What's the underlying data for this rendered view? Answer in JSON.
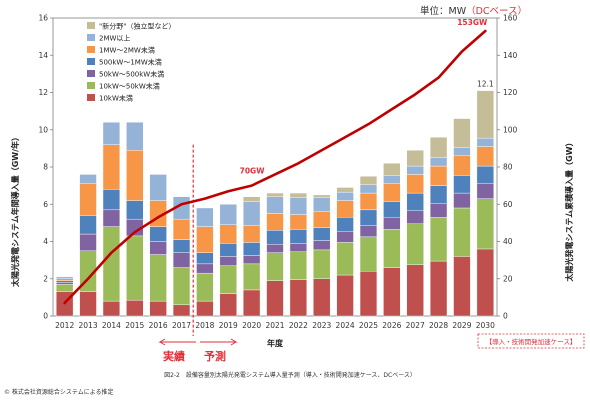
{
  "chart_data": {
    "type": "bar",
    "stacked": true,
    "title": "",
    "unit_label": "単位：MW",
    "unit_label_accent": "（DCベース）",
    "xlabel": "年度",
    "ylabel_left": "太陽光発電システム年間導入量（GW/年）",
    "ylabel_right": "太陽光発電システム累積導入量（GW）",
    "ylim_left": [
      0,
      16
    ],
    "ylim_right": [
      0,
      160
    ],
    "yticks_left": [
      "0",
      "2",
      "4",
      "6",
      "8",
      "10",
      "12",
      "14",
      "16"
    ],
    "yticks_right": [
      "0",
      "20",
      "40",
      "60",
      "80",
      "100",
      "120",
      "140",
      "160"
    ],
    "categories": [
      "2012",
      "2013",
      "2014",
      "2015",
      "2016",
      "2017",
      "2018",
      "2019",
      "2020",
      "2021",
      "2022",
      "2023",
      "2024",
      "2025",
      "2026",
      "2027",
      "2028",
      "2029",
      "2030"
    ],
    "series": [
      {
        "name": "10kW未満",
        "color": "#c0504d",
        "values": [
          1.3,
          1.3,
          0.8,
          0.85,
          0.8,
          0.6,
          0.8,
          1.2,
          1.4,
          1.9,
          1.95,
          2.0,
          2.2,
          2.4,
          2.6,
          2.75,
          2.95,
          3.2,
          3.6
        ]
      },
      {
        "name": "10kW～50kW未満",
        "color": "#9bbb59",
        "values": [
          0.4,
          2.2,
          4.0,
          3.45,
          2.5,
          2.0,
          1.5,
          1.5,
          1.4,
          1.5,
          1.5,
          1.55,
          1.75,
          1.85,
          2.05,
          2.2,
          2.35,
          2.6,
          2.7
        ]
      },
      {
        "name": "50kW～500kW未満",
        "color": "#8064a2",
        "values": [
          0.1,
          0.9,
          0.9,
          0.9,
          0.7,
          0.8,
          0.5,
          0.5,
          0.45,
          0.45,
          0.45,
          0.5,
          0.6,
          0.6,
          0.65,
          0.7,
          0.75,
          0.8,
          0.8
        ]
      },
      {
        "name": "500kW～1MW未満",
        "color": "#4f81bd",
        "values": [
          0.1,
          1.0,
          1.1,
          1.0,
          0.8,
          0.7,
          0.6,
          0.7,
          0.7,
          0.75,
          0.75,
          0.7,
          0.75,
          0.85,
          0.85,
          0.95,
          0.95,
          0.95,
          0.95
        ]
      },
      {
        "name": "1MW～2MW未満",
        "color": "#f79646",
        "values": [
          0.1,
          1.7,
          2.4,
          2.7,
          1.4,
          1.1,
          1.4,
          1.0,
          0.9,
          0.9,
          0.8,
          0.85,
          0.9,
          0.9,
          0.95,
          1.0,
          1.05,
          1.05,
          1.05
        ]
      },
      {
        "name": "2MW以上",
        "color": "#95b3d7",
        "values": [
          0.1,
          0.5,
          1.2,
          1.5,
          1.4,
          1.2,
          1.0,
          1.1,
          1.3,
          0.9,
          0.9,
          0.75,
          0.45,
          0.45,
          0.45,
          0.45,
          0.45,
          0.45,
          0.45
        ]
      },
      {
        "name": "\"新分野\"（独立型など）",
        "color": "#c4bd97",
        "values": [
          0.0,
          0.0,
          0.0,
          0.0,
          0.0,
          0.0,
          0.0,
          0.0,
          0.25,
          0.2,
          0.25,
          0.15,
          0.25,
          0.45,
          0.65,
          0.85,
          1.1,
          1.55,
          2.55
        ]
      }
    ],
    "cumulative": {
      "name": "累積導入量",
      "color": "#c00000",
      "axis": "right",
      "values": [
        7,
        20,
        34,
        45,
        53,
        60,
        63,
        67,
        70,
        76,
        82,
        89,
        96,
        103,
        111,
        119,
        128,
        142,
        153
      ]
    },
    "data_labels": {
      "bar_2030": "12.1",
      "cum_2020": "70GW",
      "cum_2030": "153GW"
    },
    "annotation_actual": "実績",
    "annotation_forecast": "予測",
    "split_between": [
      "2017",
      "2018"
    ],
    "scenario_label": "【導入・技術開発加速ケース】",
    "grid": false,
    "legend_position": "top-left"
  },
  "caption": "図2-2　設備容量別太陽光発電システム導入量予測（導入・技術開発加速ケース、DCベース）",
  "copyright": "© 株式会社資源総合システムによる推定"
}
